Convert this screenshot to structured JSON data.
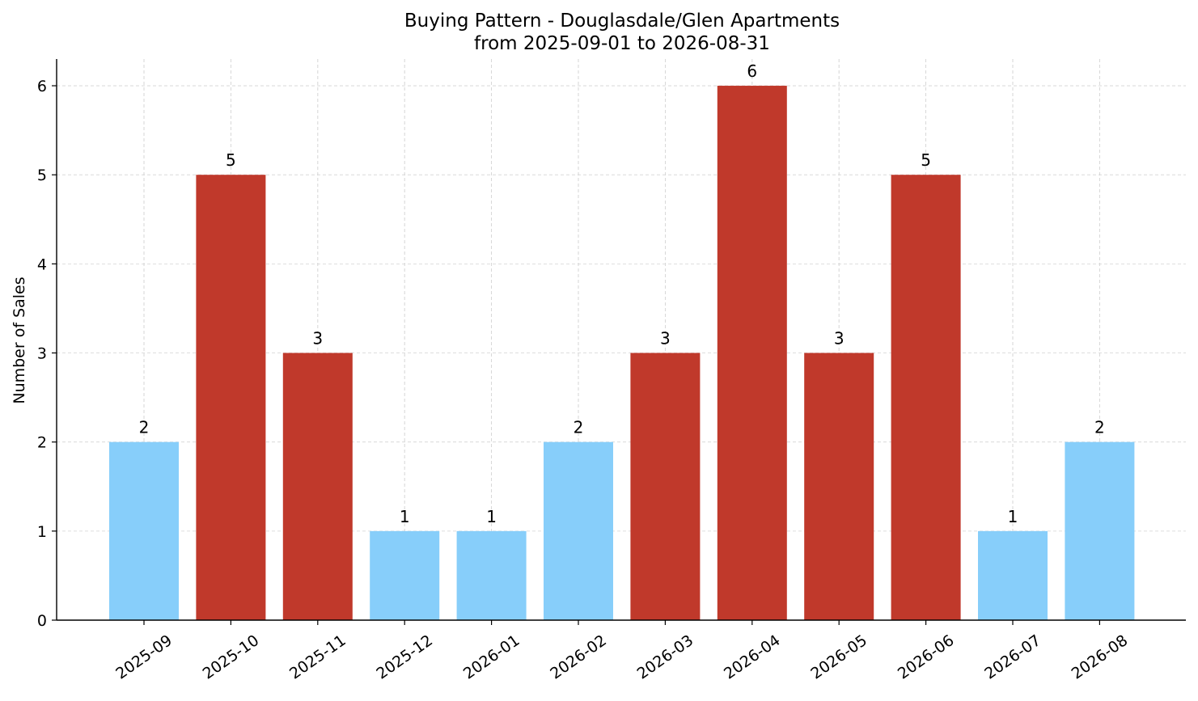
{
  "chart_data": {
    "type": "bar",
    "title": "Buying Pattern - Douglasdale/Glen Apartments",
    "subtitle": "from 2025-09-01 to 2026-08-31",
    "xlabel": "",
    "ylabel": "Number of Sales",
    "categories": [
      "2025-09",
      "2025-10",
      "2025-11",
      "2025-12",
      "2026-01",
      "2026-02",
      "2026-03",
      "2026-04",
      "2026-05",
      "2026-06",
      "2026-07",
      "2026-08"
    ],
    "values": [
      2,
      5,
      3,
      1,
      1,
      2,
      3,
      6,
      3,
      5,
      1,
      2
    ],
    "ylim": [
      0,
      6.3
    ],
    "yticks": [
      0,
      1,
      2,
      3,
      4,
      5,
      6
    ],
    "grid": true,
    "colors": {
      "high": "#c0392b",
      "low": "#87cefa",
      "grid": "#d3d3d3",
      "axis": "#000000"
    },
    "high_threshold": 3
  }
}
